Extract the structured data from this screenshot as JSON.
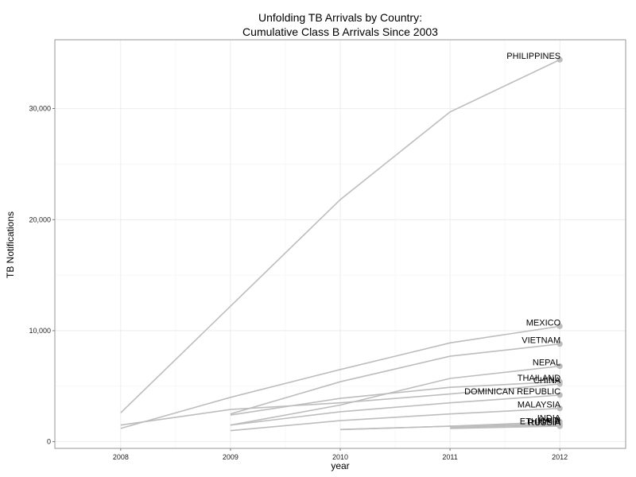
{
  "chart_data": {
    "type": "line",
    "title": "Unfolding TB Arrivals by Country:",
    "subtitle": "Cumulative Class B Arrivals Since 2003",
    "xlabel": "year",
    "ylabel": "TB Notifications",
    "x_ticks": [
      "2008",
      "2009",
      "2010",
      "2011",
      "2012"
    ],
    "y_ticks": [
      0,
      10000,
      20000,
      30000
    ],
    "y_tick_labels": [
      "0",
      "10,000",
      "20,000",
      "30,000"
    ],
    "xlim": [
      2007.4,
      2012.6
    ],
    "ylim": [
      -600,
      36200
    ],
    "grid": true,
    "line_color": "#bdbdbd",
    "end_point_color": "#bdbdbd",
    "series": [
      {
        "name": "PHILIPPINES",
        "x": [
          2008,
          2009,
          2010,
          2011,
          2012
        ],
        "values": [
          2600,
          12200,
          21800,
          29700,
          34400
        ]
      },
      {
        "name": "MEXICO",
        "x": [
          2008,
          2009,
          2010,
          2011,
          2012
        ],
        "values": [
          1200,
          4000,
          6500,
          8900,
          10400
        ]
      },
      {
        "name": "VIETNAM",
        "x": [
          2009,
          2010,
          2011,
          2012
        ],
        "values": [
          2500,
          5400,
          7700,
          8800
        ]
      },
      {
        "name": "NEPAL",
        "x": [
          2009,
          2010,
          2011,
          2012
        ],
        "values": [
          1500,
          3300,
          5700,
          6800
        ]
      },
      {
        "name": "THAILAND",
        "x": [
          2009,
          2010,
          2011,
          2012
        ],
        "values": [
          2400,
          3900,
          4900,
          5400
        ]
      },
      {
        "name": "CHINA",
        "x": [
          2008,
          2009,
          2010,
          2011,
          2012
        ],
        "values": [
          1500,
          2900,
          3500,
          4300,
          5200
        ]
      },
      {
        "name": "DOMINICAN REPUBLIC",
        "x": [
          2009,
          2010,
          2011,
          2012
        ],
        "values": [
          1500,
          2700,
          3500,
          4200
        ]
      },
      {
        "name": "MALAYSIA",
        "x": [
          2009,
          2010,
          2011,
          2012
        ],
        "values": [
          1000,
          1900,
          2500,
          3000
        ]
      },
      {
        "name": "INDIA",
        "x": [
          2010,
          2011,
          2012
        ],
        "values": [
          1100,
          1400,
          1800
        ]
      },
      {
        "name": "HAITI",
        "x": [
          2010,
          2011,
          2012
        ],
        "values": [
          1100,
          1400,
          1600
        ]
      },
      {
        "name": "ETHIOPIA",
        "x": [
          2011,
          2012
        ],
        "values": [
          1300,
          1500
        ]
      },
      {
        "name": "RUSSIA",
        "x": [
          2011,
          2012
        ],
        "values": [
          1200,
          1400
        ]
      }
    ]
  }
}
